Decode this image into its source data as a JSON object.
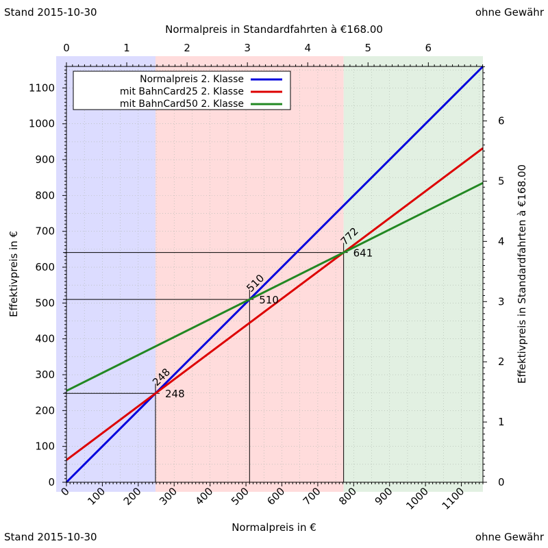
{
  "corners": {
    "top_left": "Stand 2015-10-30",
    "top_right": "ohne Gewähr",
    "bottom_left": "Stand 2015-10-30",
    "bottom_right": "ohne Gewähr"
  },
  "colors": {
    "normal": "#0000dd",
    "bc25": "#dd0000",
    "bc50": "#228822",
    "region_normal": "#dcdcff",
    "region_bc25": "#ffdcdc",
    "region_bc50": "#e2f0e2"
  },
  "chart_data": {
    "type": "line",
    "xlabel": "Normalpreis in €",
    "ylabel": "Effektivpreis in €",
    "x2label": "Normalpreis in Standardfahrten à €168.00",
    "y2label": "Effektivpreis in Standardfahrten à €168.00",
    "xlim": [
      0,
      1160
    ],
    "ylim": [
      0,
      1160
    ],
    "x_ticks": [
      0,
      100,
      200,
      300,
      400,
      500,
      600,
      700,
      800,
      900,
      1000,
      1100
    ],
    "y_ticks": [
      0,
      100,
      200,
      300,
      400,
      500,
      600,
      700,
      800,
      900,
      1000,
      1100
    ],
    "x2_ticks": [
      0,
      1,
      2,
      3,
      4,
      5,
      6
    ],
    "y2_ticks": [
      0,
      1,
      2,
      3,
      4,
      5,
      6
    ],
    "legend": "top-left",
    "grid": true,
    "series": [
      {
        "name": "Normalpreis 2. Klasse",
        "x": [
          0,
          1160
        ],
        "y": [
          0,
          1160
        ]
      },
      {
        "name": "mit BahnCard25 2. Klasse",
        "x": [
          0,
          1160
        ],
        "y": [
          62,
          932
        ]
      },
      {
        "name": "mit BahnCard50 2. Klasse",
        "x": [
          0,
          1160
        ],
        "y": [
          255,
          835
        ]
      }
    ],
    "regions": [
      {
        "series": "Normalpreis 2. Klasse",
        "x_from": 0,
        "x_to": 248
      },
      {
        "series": "mit BahnCard25 2. Klasse",
        "x_from": 248,
        "x_to": 772
      },
      {
        "series": "mit BahnCard50 2. Klasse",
        "x_from": 772,
        "x_to": 1160
      }
    ],
    "annotations": [
      {
        "x": 248,
        "y": 248,
        "x_label": "248",
        "y_label": "248"
      },
      {
        "x": 510,
        "y": 510,
        "x_label": "510",
        "y_label": "510"
      },
      {
        "x": 772,
        "y": 641,
        "x_label": "772",
        "y_label": "641"
      }
    ]
  }
}
